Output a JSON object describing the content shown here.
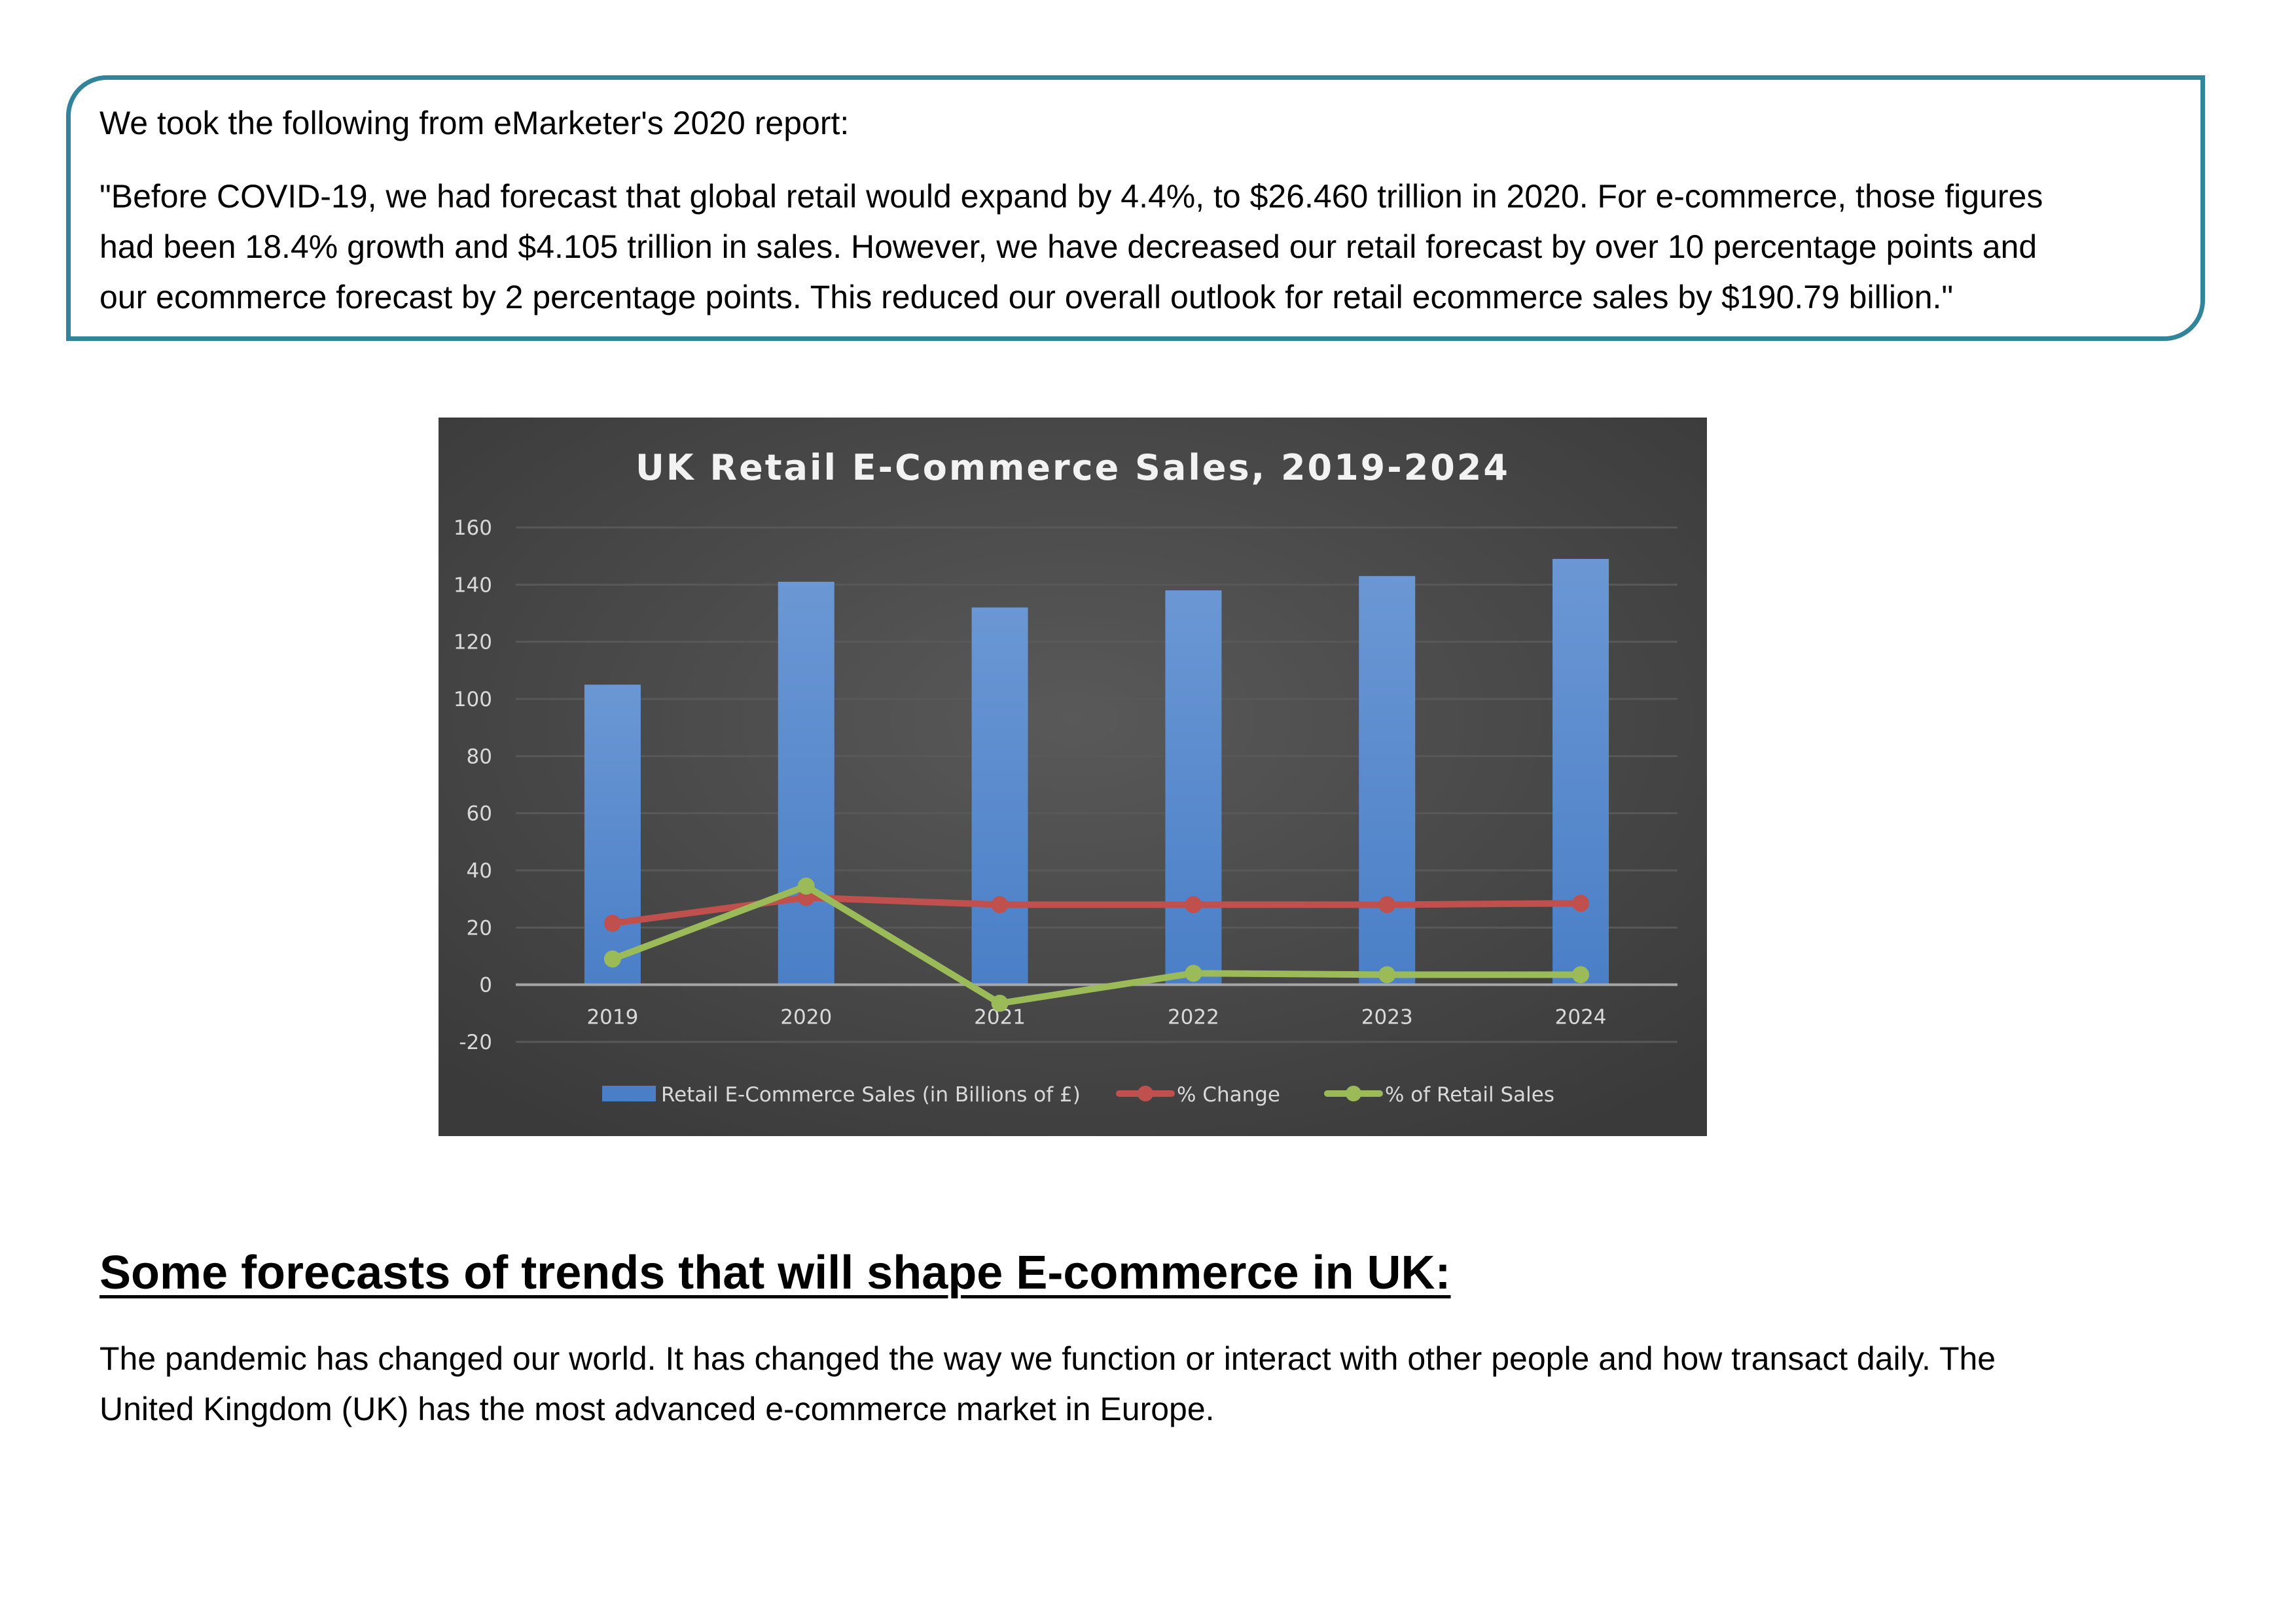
{
  "quote": {
    "intro": "We took the following from eMarketer's 2020 report:",
    "lines": [
      "\"Before COVID-19, we had forecast that global retail would expand by 4.4%, to $26.460 trillion in 2020. For e-commerce, those figures",
      "had been 18.4% growth and $4.105 trillion in sales. However, we have decreased our retail forecast by over 10 percentage points and",
      "our ecommerce forecast by 2 percentage points. This reduced our overall outlook for retail ecommerce sales by $190.79 billion.\""
    ]
  },
  "section": {
    "heading": "Some forecasts of trends that will shape E-commerce in UK:",
    "body_lines": [
      "The pandemic has changed our world. It has changed the way we function or interact with other people and how transact daily. The",
      "United Kingdom (UK) has the most advanced e-commerce market in Europe."
    ]
  },
  "chart_data": {
    "type": "bar",
    "title": "UK Retail E-Commerce Sales, 2019-2024",
    "xlabel": "",
    "ylabel": "",
    "categories": [
      "2019",
      "2020",
      "2021",
      "2022",
      "2023",
      "2024"
    ],
    "ylim": [
      -20,
      160
    ],
    "yticks": [
      160,
      140,
      120,
      100,
      80,
      60,
      40,
      20,
      0,
      -20
    ],
    "grid": true,
    "legend_position": "bottom",
    "colors": {
      "background": "#3a3a3a",
      "background_center": "#595959",
      "bar": "#4a7fc7",
      "bar_light": "#6b97d4",
      "change": "#c0504d",
      "retail_share": "#9bbb59",
      "text": "#d9d9d9",
      "title": "#f2f2f2",
      "grid": "#585858",
      "axis": "#a6a6a6"
    },
    "series": [
      {
        "name": "Retail E-Commerce Sales (in Billions of £)",
        "type": "bar",
        "values": [
          105,
          141,
          132,
          138,
          143,
          149
        ]
      },
      {
        "name": "% Change",
        "type": "line",
        "values": [
          21.5,
          30.5,
          28,
          28,
          28,
          28.5
        ]
      },
      {
        "name": "% of Retail Sales",
        "type": "line",
        "values": [
          9,
          34.5,
          -6.5,
          4,
          3.5,
          3.5
        ]
      }
    ]
  }
}
